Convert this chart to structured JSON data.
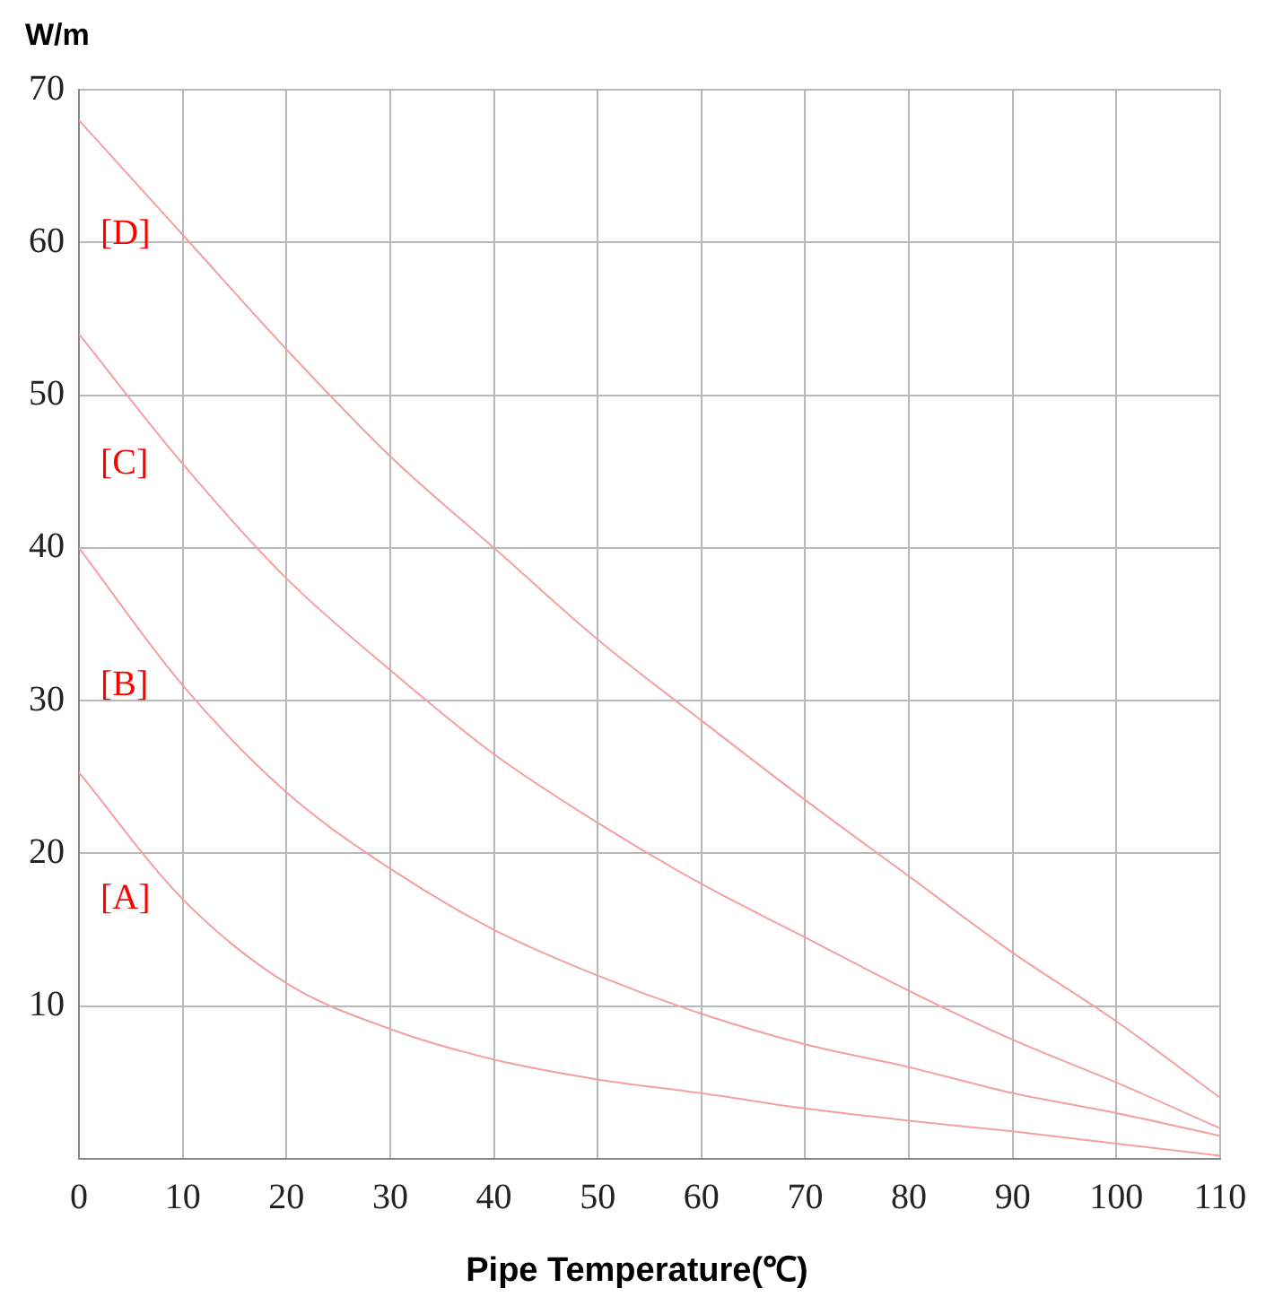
{
  "chart_data": {
    "type": "line",
    "xlabel": "Pipe Temperature(℃)",
    "ylabel": "W/m",
    "x": [
      0,
      10,
      20,
      30,
      40,
      50,
      60,
      70,
      80,
      90,
      100,
      110
    ],
    "series": [
      {
        "name": "[D]",
        "color": "#f4a0a0",
        "values": [
          68,
          60.5,
          53,
          46,
          40,
          34,
          28.7,
          23.5,
          18.5,
          13.5,
          9,
          4
        ]
      },
      {
        "name": "[C]",
        "color": "#f4a0a0",
        "values": [
          54,
          45.5,
          38,
          32,
          26.5,
          22,
          18,
          14.5,
          11,
          7.8,
          5,
          2
        ]
      },
      {
        "name": "[B]",
        "color": "#f4a0a0",
        "values": [
          40,
          31,
          24,
          19,
          15,
          12,
          9.5,
          7.5,
          6,
          4.3,
          3,
          1.5
        ]
      },
      {
        "name": "[A]",
        "color": "#f4a0a0",
        "values": [
          25.3,
          17,
          11.5,
          8.5,
          6.5,
          5.2,
          4.3,
          3.3,
          2.5,
          1.8,
          1,
          0.2
        ]
      }
    ],
    "xlim": [
      0,
      110
    ],
    "xticks": [
      0,
      10,
      20,
      30,
      40,
      50,
      60,
      70,
      80,
      90,
      100,
      110
    ],
    "ylim": [
      0,
      70
    ],
    "yticks": [
      {
        "value": 0,
        "label": null
      },
      10,
      20,
      30,
      40,
      50,
      60,
      70
    ],
    "grid": true,
    "legend": false,
    "marker": "none",
    "line_style": "solid"
  }
}
